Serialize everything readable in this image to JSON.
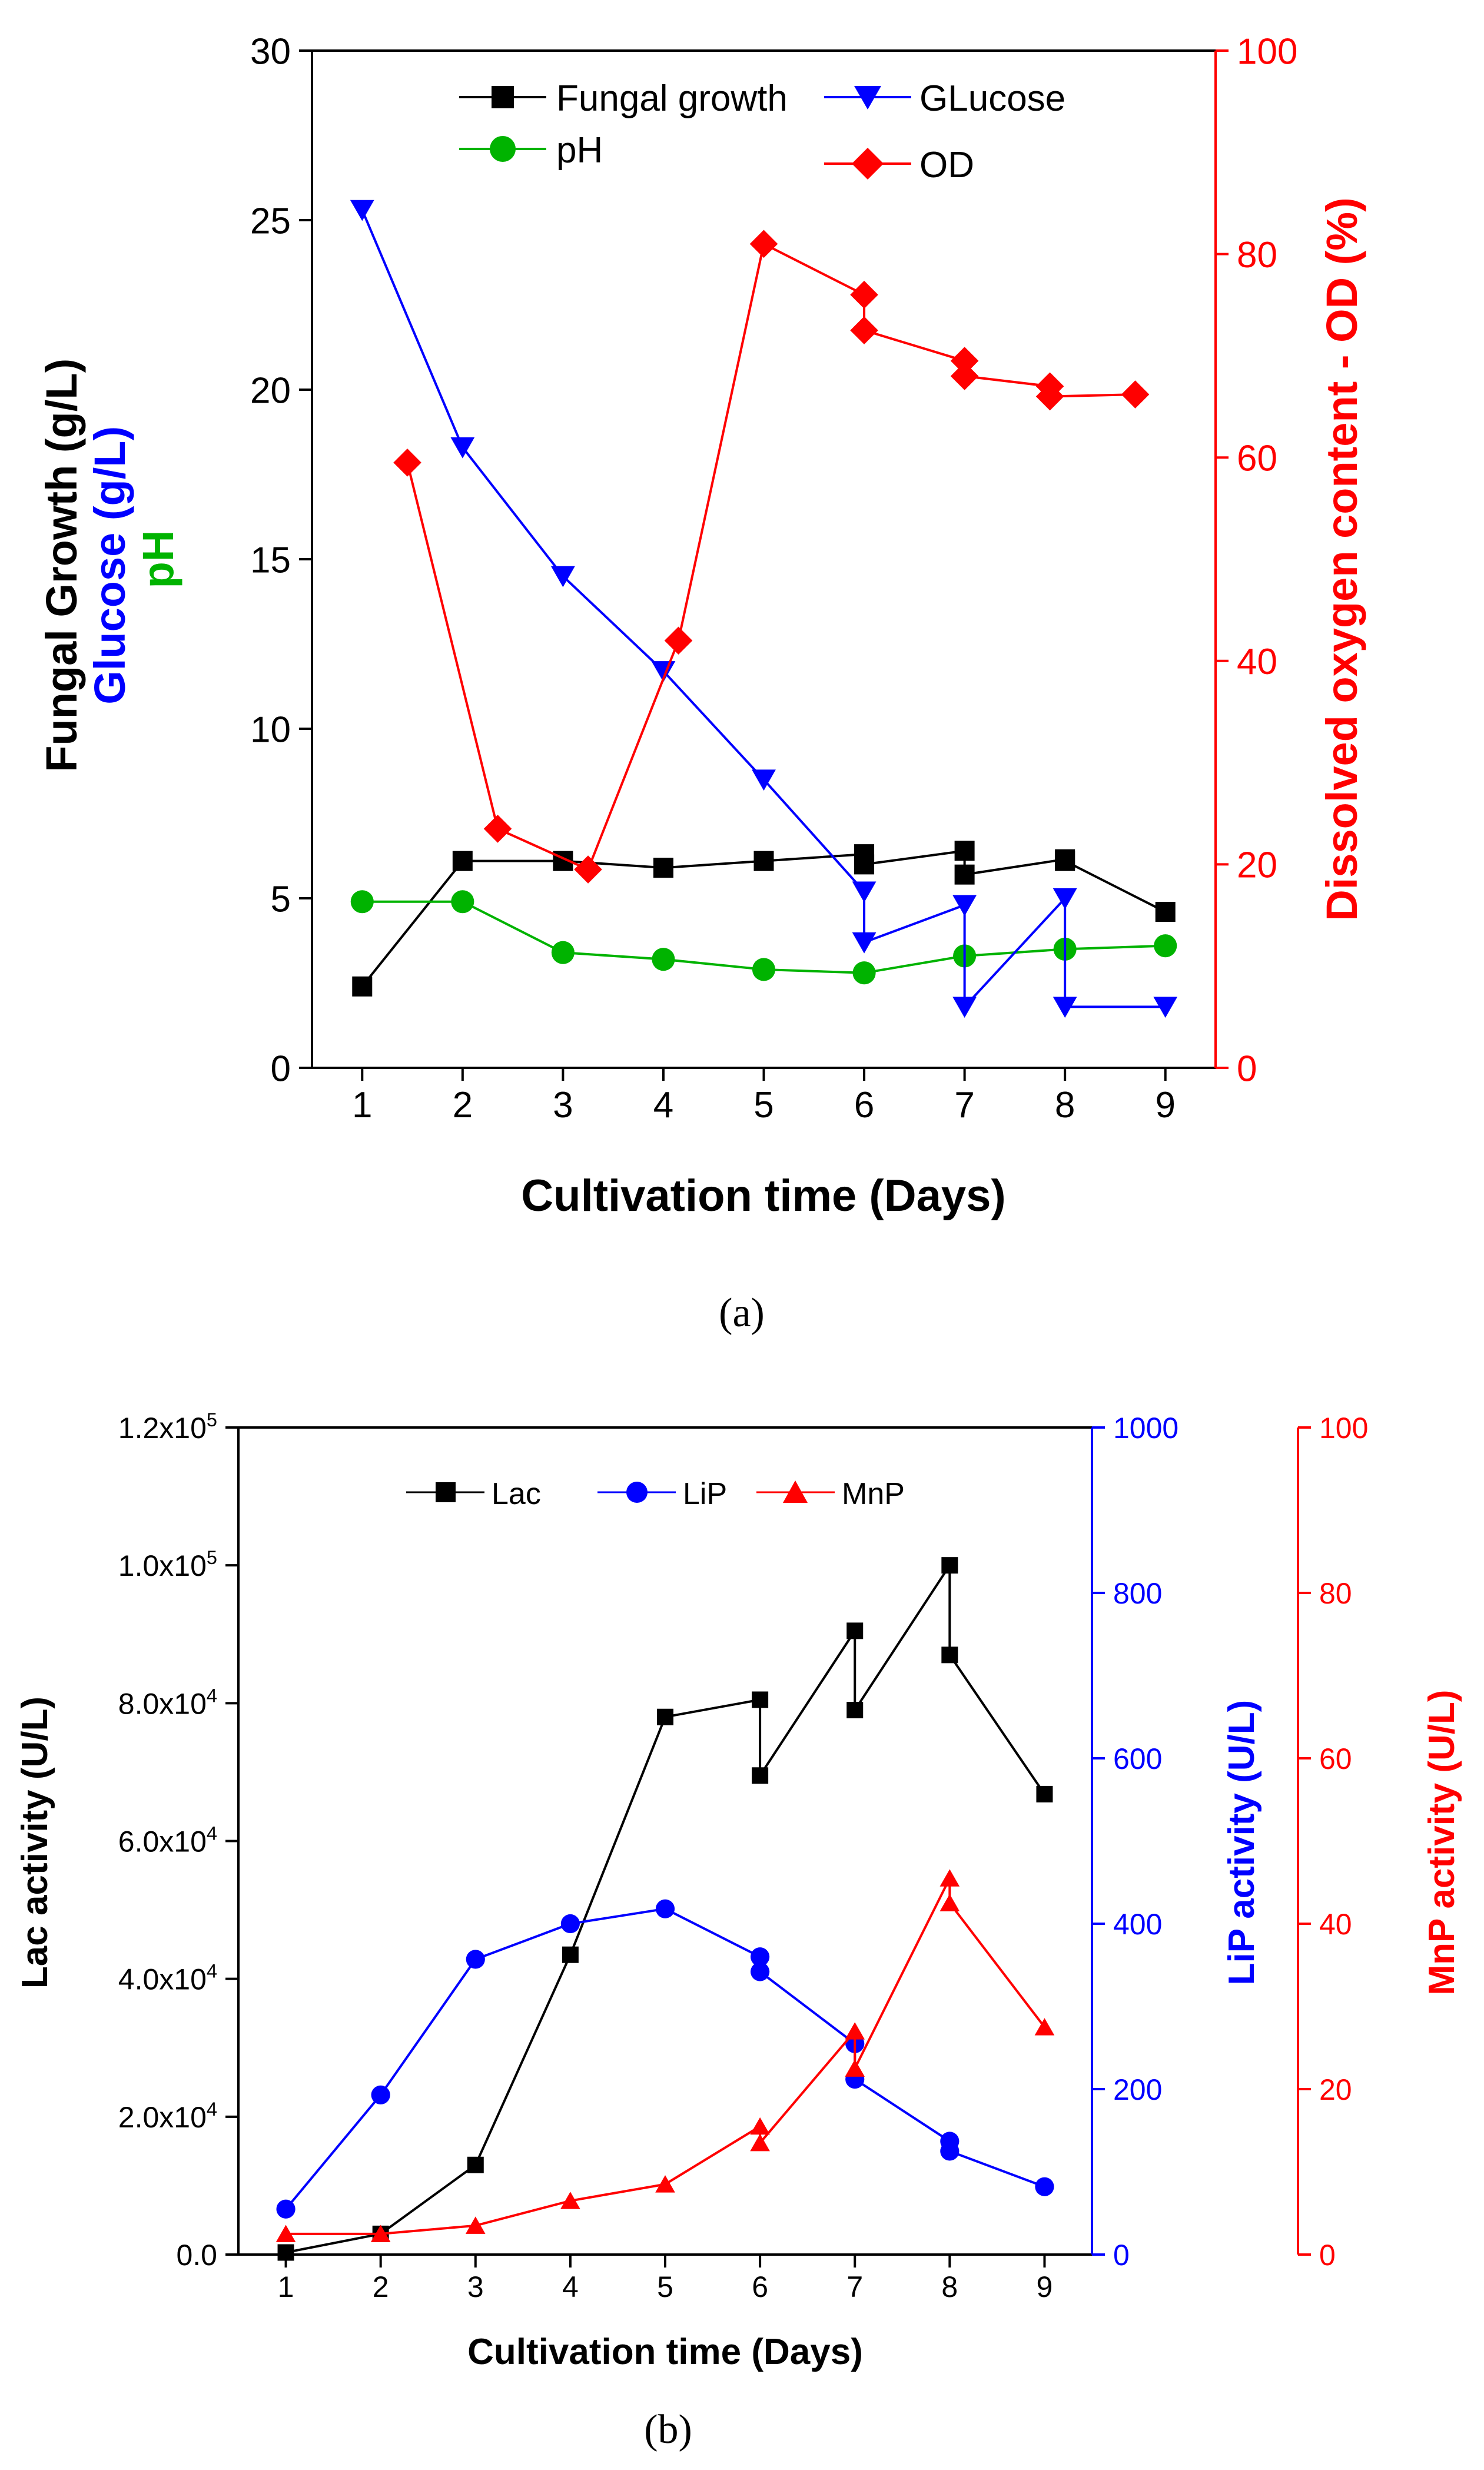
{
  "chart_data": [
    {
      "id": "a",
      "type": "line",
      "caption": "(a)",
      "xlabel": "Cultivation time (Days)",
      "x_ticks": [
        1,
        2,
        3,
        4,
        5,
        6,
        7,
        8,
        9
      ],
      "xlim": [
        0.5,
        9.5
      ],
      "ylabel_parts": [
        {
          "text": "Fungal Growth (g/L)",
          "color": "#000000"
        },
        {
          "text": "Glucose (g/L)",
          "color": "#0000ff"
        },
        {
          "text": "pH",
          "color": "#00b300"
        }
      ],
      "y_left": {
        "lim": [
          0,
          30
        ],
        "ticks": [
          0,
          5,
          10,
          15,
          20,
          25,
          30
        ]
      },
      "y_right": {
        "label": "Dissolved oxygen content - OD (%)",
        "lim": [
          0,
          100
        ],
        "ticks": [
          0,
          20,
          40,
          60,
          80,
          100
        ],
        "color": "#ff0000"
      },
      "series": [
        {
          "name": "Fungal growth",
          "axis": "left",
          "marker": "square",
          "color": "#000000",
          "points": [
            [
              1,
              2.4
            ],
            [
              2,
              6.1
            ],
            [
              3,
              6.1
            ],
            [
              4,
              5.9
            ],
            [
              5,
              6.1
            ],
            [
              6,
              6.3
            ],
            [
              6,
              6.0
            ],
            [
              7,
              6.4
            ],
            [
              7,
              5.7
            ],
            [
              8,
              6.15
            ],
            [
              8,
              6.1
            ],
            [
              9,
              4.6
            ]
          ]
        },
        {
          "name": "pH",
          "axis": "left",
          "marker": "circle",
          "color": "#00b300",
          "points": [
            [
              1,
              4.9
            ],
            [
              2,
              4.9
            ],
            [
              3,
              3.4
            ],
            [
              4,
              3.2
            ],
            [
              5,
              2.9
            ],
            [
              6,
              2.8
            ],
            [
              7,
              3.3
            ],
            [
              8,
              3.5
            ],
            [
              9,
              3.6
            ]
          ]
        },
        {
          "name": "GLucose",
          "axis": "left",
          "marker": "triangle-down",
          "color": "#0000ff",
          "points": [
            [
              1,
              25.3
            ],
            [
              2,
              18.3
            ],
            [
              3,
              14.5
            ],
            [
              4,
              11.7
            ],
            [
              5,
              8.5
            ],
            [
              6,
              5.2
            ],
            [
              6,
              3.7
            ],
            [
              7,
              4.8
            ],
            [
              7,
              1.8
            ],
            [
              8,
              5.0
            ],
            [
              8,
              1.8
            ],
            [
              9,
              1.8
            ]
          ]
        },
        {
          "name": "OD",
          "axis": "right",
          "marker": "diamond",
          "color": "#ff0000",
          "points": [
            [
              1.45,
              59.5
            ],
            [
              2.35,
              23.5
            ],
            [
              3.25,
              19.5
            ],
            [
              4.15,
              42
            ],
            [
              5,
              81
            ],
            [
              6,
              76
            ],
            [
              6,
              72.5
            ],
            [
              7,
              69.5
            ],
            [
              7,
              68
            ],
            [
              7.85,
              67
            ],
            [
              7.85,
              66
            ],
            [
              8.7,
              66.2
            ]
          ]
        }
      ]
    },
    {
      "id": "b",
      "type": "line",
      "caption": "(b)",
      "xlabel": "Cultivation time (Days)",
      "x_ticks": [
        1,
        2,
        3,
        4,
        5,
        6,
        7,
        8,
        9
      ],
      "xlim": [
        0.5,
        9.5
      ],
      "y_left": {
        "label": "Lac activity (U/L)",
        "lim": [
          0,
          120000
        ],
        "ticks": [
          0,
          20000,
          40000,
          60000,
          80000,
          100000,
          120000
        ],
        "tick_labels": [
          "0.0",
          "2.0x10^4",
          "4.0x10^4",
          "6.0x10^4",
          "8.0x10^4",
          "1.0x10^5",
          "1.2x10^5"
        ]
      },
      "y_right_1": {
        "label": "LiP activity (U/L)",
        "lim": [
          0,
          1000
        ],
        "ticks": [
          0,
          200,
          400,
          600,
          800,
          1000
        ],
        "color": "#0000ff"
      },
      "y_right_2": {
        "label": "MnP activity (U/L)",
        "lim": [
          0,
          100
        ],
        "ticks": [
          0,
          20,
          40,
          60,
          80,
          100
        ],
        "color": "#ff0000"
      },
      "series": [
        {
          "name": "Lac",
          "axis": "left",
          "marker": "square",
          "color": "#000000",
          "points": [
            [
              1,
              300
            ],
            [
              2,
              3000
            ],
            [
              3,
              13000
            ],
            [
              4,
              43500
            ],
            [
              5,
              78000
            ],
            [
              6,
              80500
            ],
            [
              6,
              69500
            ],
            [
              7,
              90500
            ],
            [
              7,
              79000
            ],
            [
              8,
              100000
            ],
            [
              8,
              87000
            ],
            [
              9,
              66800
            ]
          ]
        },
        {
          "name": "LiP",
          "axis": "right_1",
          "marker": "circle",
          "color": "#0000ff",
          "points": [
            [
              1,
              55
            ],
            [
              2,
              193
            ],
            [
              3,
              357
            ],
            [
              4,
              400
            ],
            [
              5,
              418
            ],
            [
              6,
              360
            ],
            [
              6,
              342
            ],
            [
              7,
              255
            ],
            [
              7,
              212
            ],
            [
              8,
              137
            ],
            [
              8,
              125
            ],
            [
              9,
              82
            ]
          ]
        },
        {
          "name": "MnP",
          "axis": "right_2",
          "marker": "triangle-up",
          "color": "#ff0000",
          "points": [
            [
              1,
              2.5
            ],
            [
              2,
              2.5
            ],
            [
              3,
              3.5
            ],
            [
              4,
              6.5
            ],
            [
              5,
              8.5
            ],
            [
              6,
              15.5
            ],
            [
              6,
              13.5
            ],
            [
              7,
              27
            ],
            [
              7,
              22.5
            ],
            [
              8,
              45.5
            ],
            [
              8,
              42.5
            ],
            [
              9,
              27.5
            ]
          ]
        }
      ]
    }
  ]
}
